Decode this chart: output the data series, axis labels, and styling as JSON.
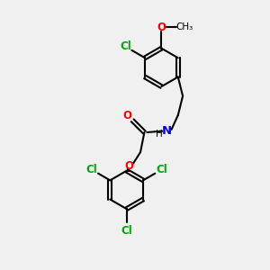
{
  "bg_color": "#f0f0f0",
  "bond_color": "#000000",
  "cl_color": "#00aa00",
  "o_color": "#ff0000",
  "n_color": "#0000ff",
  "line_width": 1.5,
  "font_size": 8.5,
  "fig_size": [
    3.0,
    3.0
  ],
  "dpi": 100,
  "xlim": [
    0,
    10
  ],
  "ylim": [
    0,
    10
  ]
}
